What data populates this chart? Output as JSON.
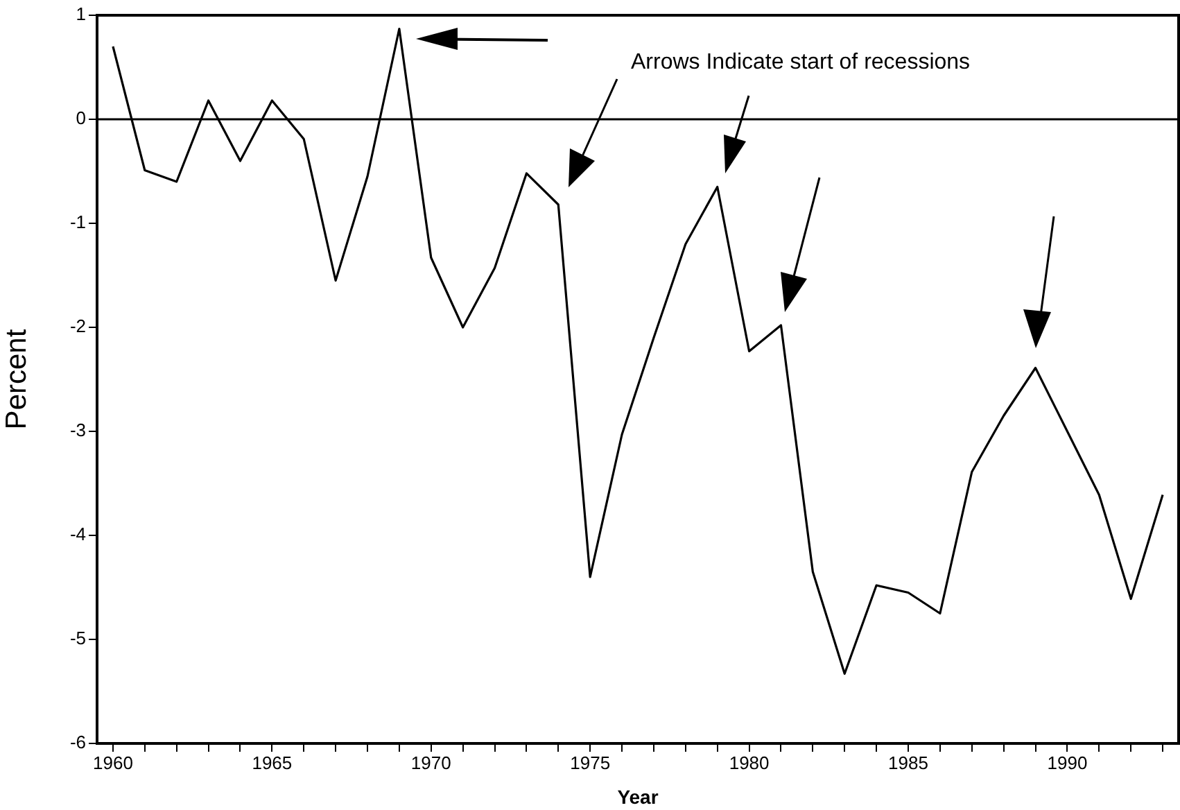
{
  "chart_data": {
    "type": "line",
    "xlabel": "Year",
    "ylabel": "Percent",
    "annotations": [
      "Arrows Indicate start of recessions"
    ],
    "x": [
      1960,
      1961,
      1962,
      1963,
      1964,
      1965,
      1966,
      1967,
      1968,
      1969,
      1970,
      1971,
      1972,
      1973,
      1974,
      1975,
      1976,
      1977,
      1978,
      1979,
      1980,
      1981,
      1982,
      1983,
      1984,
      1985,
      1986,
      1987,
      1988,
      1989,
      1990,
      1991,
      1992,
      1993
    ],
    "series": [
      {
        "color": "#000000",
        "values": [
          0.7,
          -0.49,
          -0.6,
          0.18,
          -0.4,
          0.18,
          -0.19,
          -1.55,
          -0.55,
          0.87,
          -1.33,
          -2.0,
          -1.43,
          -0.52,
          -0.82,
          -4.4,
          -3.03,
          -2.1,
          -1.2,
          -0.65,
          -2.23,
          -1.98,
          -4.35,
          -5.33,
          -4.48,
          -4.55,
          -4.75,
          -3.39,
          -2.85,
          -2.39,
          -3.0,
          -3.61,
          -4.61,
          -3.61
        ]
      }
    ],
    "xlim": [
      1959.5,
      1993.5
    ],
    "xticks": [
      1960,
      {
        "value": 1961,
        "label": null
      },
      {
        "value": 1962,
        "label": null
      },
      {
        "value": 1963,
        "label": null
      },
      {
        "value": 1964,
        "label": null
      },
      1965,
      {
        "value": 1966,
        "label": null
      },
      {
        "value": 1967,
        "label": null
      },
      {
        "value": 1968,
        "label": null
      },
      {
        "value": 1969,
        "label": null
      },
      1970,
      {
        "value": 1971,
        "label": null
      },
      {
        "value": 1972,
        "label": null
      },
      {
        "value": 1973,
        "label": null
      },
      {
        "value": 1974,
        "label": null
      },
      1975,
      {
        "value": 1976,
        "label": null
      },
      {
        "value": 1977,
        "label": null
      },
      {
        "value": 1978,
        "label": null
      },
      {
        "value": 1979,
        "label": null
      },
      1980,
      {
        "value": 1981,
        "label": null
      },
      {
        "value": 1982,
        "label": null
      },
      {
        "value": 1983,
        "label": null
      },
      {
        "value": 1984,
        "label": null
      },
      1985,
      {
        "value": 1986,
        "label": null
      },
      {
        "value": 1987,
        "label": null
      },
      {
        "value": 1988,
        "label": null
      },
      {
        "value": 1989,
        "label": null
      },
      1990,
      {
        "value": 1991,
        "label": null
      },
      {
        "value": 1992,
        "label": null
      },
      {
        "value": 1993,
        "label": null
      }
    ],
    "ylim": [
      -6,
      1
    ],
    "yticks": [
      -6,
      -5,
      -4,
      -3,
      -2,
      -1,
      0,
      1
    ],
    "ref_lines": [
      {
        "axis": "y",
        "value": 0,
        "color": "#000000"
      }
    ],
    "grid": false,
    "legend": false,
    "marker": "none",
    "line_style": "solid"
  }
}
